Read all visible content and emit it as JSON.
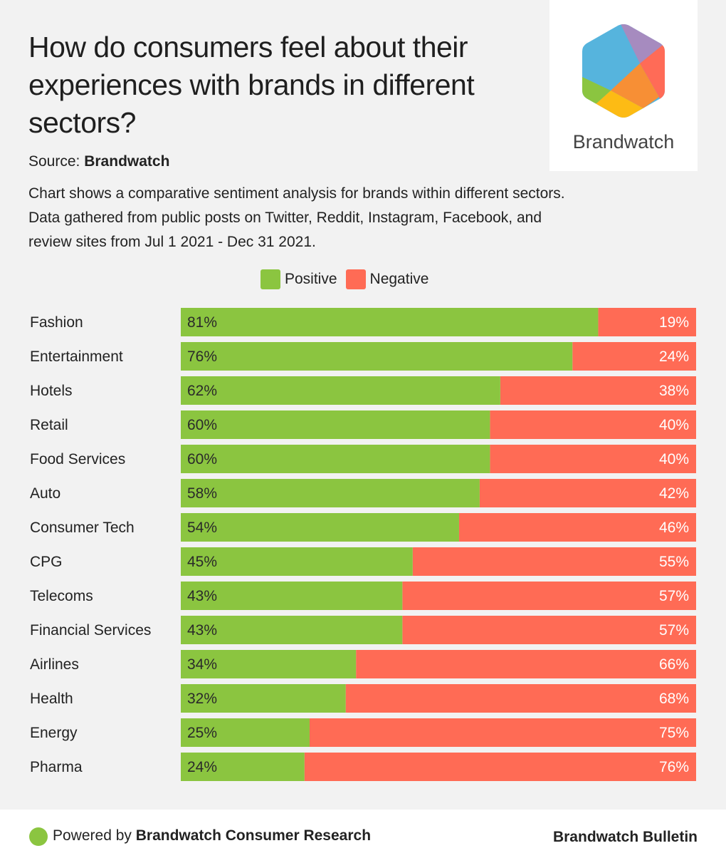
{
  "header": {
    "title": "How do consumers feel about their experiences with brands in different sectors?",
    "source_label": "Source:",
    "source_name": "Brandwatch",
    "description": "Chart shows a comparative sentiment analysis for brands within different sectors. Data gathered from public posts on Twitter, Reddit, Instagram, Facebook, and review sites from Jul 1 2021 - Dec 31 2021."
  },
  "logo": {
    "name": "Brandwatch",
    "colors": {
      "blue": "#56b4dd",
      "purple": "#a68bbf",
      "red": "#ff6b57",
      "orange": "#f78f35",
      "yellow": "#fdbb14",
      "green": "#8bc540"
    }
  },
  "footer": {
    "powered_prefix": "Powered by",
    "powered_name": "Brandwatch Consumer Research",
    "bulletin": "Brandwatch Bulletin"
  },
  "chart_data": {
    "type": "bar",
    "orientation": "horizontal",
    "stacked": true,
    "categories": [
      "Fashion",
      "Entertainment",
      "Hotels",
      "Retail",
      "Food Services",
      "Auto",
      "Consumer Tech",
      "CPG",
      "Telecoms",
      "Financial Services",
      "Airlines",
      "Health",
      "Energy",
      "Pharma"
    ],
    "series": [
      {
        "name": "Positive",
        "color": "#8bc540",
        "values": [
          81,
          76,
          62,
          60,
          60,
          58,
          54,
          45,
          43,
          43,
          34,
          32,
          25,
          24
        ]
      },
      {
        "name": "Negative",
        "color": "#ff6b55",
        "values": [
          19,
          24,
          38,
          40,
          40,
          42,
          46,
          55,
          57,
          57,
          66,
          68,
          75,
          76
        ]
      }
    ],
    "value_suffix": "%",
    "title": "How do consumers feel about their experiences with brands in different sectors?",
    "xlabel": "",
    "ylabel": "",
    "xlim": [
      0,
      100
    ],
    "grid": false,
    "legend": "top-center"
  }
}
